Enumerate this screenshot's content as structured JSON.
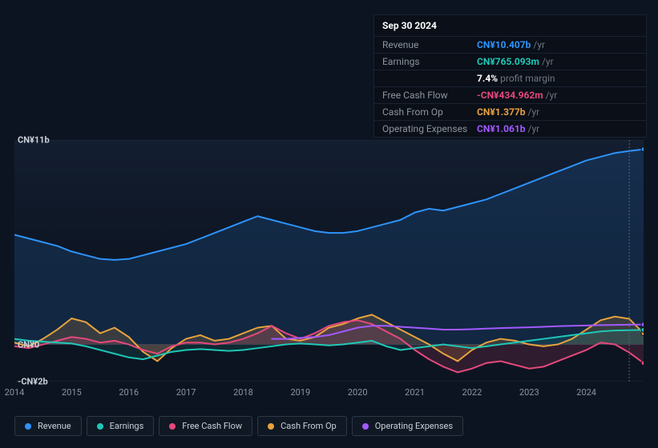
{
  "background_color": "#0d1421",
  "panel": {
    "title": "Sep 30 2024",
    "rows": [
      {
        "label": "Revenue",
        "value": "CN¥10.407b",
        "suffix": "/yr",
        "color": "#2e93fa"
      },
      {
        "label": "Earnings",
        "value": "CN¥765.093m",
        "suffix": "/yr",
        "color": "#1ec7b6"
      },
      {
        "label": "",
        "value": "7.4%",
        "suffix": "profit margin",
        "color": "#ffffff"
      },
      {
        "label": "Free Cash Flow",
        "value": "-CN¥434.962m",
        "suffix": "/yr",
        "color": "#e6487c"
      },
      {
        "label": "Cash From Op",
        "value": "CN¥1.377b",
        "suffix": "/yr",
        "color": "#e8a33d"
      },
      {
        "label": "Operating Expenses",
        "value": "CN¥1.061b",
        "suffix": "/yr",
        "color": "#a259ff"
      }
    ]
  },
  "chart": {
    "type": "area-multi",
    "x_domain": [
      2014,
      2025
    ],
    "y_domain": [
      -2,
      11
    ],
    "y_zero": 0,
    "y_ticks": [
      {
        "v": 11,
        "label": "CN¥11b"
      },
      {
        "v": 0,
        "label": "CN¥0"
      },
      {
        "v": -2,
        "label": "-CN¥2b"
      }
    ],
    "x_ticks": [
      2014,
      2015,
      2016,
      2017,
      2018,
      2019,
      2020,
      2021,
      2022,
      2023,
      2024
    ],
    "vline_x": 2024.75,
    "plot_bg_top": "rgba(30,50,80,0.35)",
    "plot_bg_bottom": "rgba(12,20,33,0.0)",
    "grid_color": "#20283a",
    "series": [
      {
        "id": "revenue",
        "label": "Revenue",
        "stroke": "#2e93fa",
        "fill": "rgba(46,147,250,0.15)",
        "data": [
          [
            2014.0,
            5.9
          ],
          [
            2014.25,
            5.7
          ],
          [
            2014.5,
            5.5
          ],
          [
            2014.75,
            5.3
          ],
          [
            2015.0,
            5.0
          ],
          [
            2015.25,
            4.8
          ],
          [
            2015.5,
            4.6
          ],
          [
            2015.75,
            4.55
          ],
          [
            2016.0,
            4.6
          ],
          [
            2016.25,
            4.8
          ],
          [
            2016.5,
            5.0
          ],
          [
            2016.75,
            5.2
          ],
          [
            2017.0,
            5.4
          ],
          [
            2017.25,
            5.7
          ],
          [
            2017.5,
            6.0
          ],
          [
            2017.75,
            6.3
          ],
          [
            2018.0,
            6.6
          ],
          [
            2018.25,
            6.9
          ],
          [
            2018.5,
            6.7
          ],
          [
            2018.75,
            6.5
          ],
          [
            2019.0,
            6.3
          ],
          [
            2019.25,
            6.1
          ],
          [
            2019.5,
            6.0
          ],
          [
            2019.75,
            6.0
          ],
          [
            2020.0,
            6.1
          ],
          [
            2020.25,
            6.3
          ],
          [
            2020.5,
            6.5
          ],
          [
            2020.75,
            6.7
          ],
          [
            2021.0,
            7.1
          ],
          [
            2021.25,
            7.3
          ],
          [
            2021.5,
            7.2
          ],
          [
            2021.75,
            7.4
          ],
          [
            2022.0,
            7.6
          ],
          [
            2022.25,
            7.8
          ],
          [
            2022.5,
            8.1
          ],
          [
            2022.75,
            8.4
          ],
          [
            2023.0,
            8.7
          ],
          [
            2023.25,
            9.0
          ],
          [
            2023.5,
            9.3
          ],
          [
            2023.75,
            9.6
          ],
          [
            2024.0,
            9.9
          ],
          [
            2024.25,
            10.1
          ],
          [
            2024.5,
            10.3
          ],
          [
            2024.75,
            10.407
          ],
          [
            2025.0,
            10.5
          ]
        ]
      },
      {
        "id": "cash_from_op",
        "label": "Cash From Op",
        "stroke": "#e8a33d",
        "fill": "rgba(232,163,61,0.18)",
        "data": [
          [
            2014.0,
            0.1
          ],
          [
            2014.25,
            -0.1
          ],
          [
            2014.5,
            0.3
          ],
          [
            2014.75,
            0.8
          ],
          [
            2015.0,
            1.4
          ],
          [
            2015.25,
            1.2
          ],
          [
            2015.5,
            0.6
          ],
          [
            2015.75,
            0.9
          ],
          [
            2016.0,
            0.4
          ],
          [
            2016.25,
            -0.4
          ],
          [
            2016.5,
            -0.9
          ],
          [
            2016.75,
            -0.2
          ],
          [
            2017.0,
            0.3
          ],
          [
            2017.25,
            0.5
          ],
          [
            2017.5,
            0.2
          ],
          [
            2017.75,
            0.3
          ],
          [
            2018.0,
            0.6
          ],
          [
            2018.25,
            0.9
          ],
          [
            2018.5,
            1.0
          ],
          [
            2018.75,
            0.3
          ],
          [
            2019.0,
            0.2
          ],
          [
            2019.25,
            0.4
          ],
          [
            2019.5,
            0.9
          ],
          [
            2019.75,
            1.1
          ],
          [
            2020.0,
            1.4
          ],
          [
            2020.25,
            1.6
          ],
          [
            2020.5,
            1.2
          ],
          [
            2020.75,
            0.8
          ],
          [
            2021.0,
            0.4
          ],
          [
            2021.25,
            0.0
          ],
          [
            2021.5,
            -0.5
          ],
          [
            2021.75,
            -0.9
          ],
          [
            2022.0,
            -0.3
          ],
          [
            2022.25,
            0.1
          ],
          [
            2022.5,
            0.3
          ],
          [
            2022.75,
            0.2
          ],
          [
            2023.0,
            0.0
          ],
          [
            2023.25,
            -0.1
          ],
          [
            2023.5,
            0.0
          ],
          [
            2023.75,
            0.3
          ],
          [
            2024.0,
            0.8
          ],
          [
            2024.25,
            1.3
          ],
          [
            2024.5,
            1.5
          ],
          [
            2024.75,
            1.377
          ],
          [
            2025.0,
            0.6
          ]
        ]
      },
      {
        "id": "free_cash_flow",
        "label": "Free Cash Flow",
        "stroke": "#e6487c",
        "fill": "rgba(230,72,124,0.16)",
        "data": [
          [
            2014.0,
            -0.1
          ],
          [
            2014.25,
            -0.2
          ],
          [
            2014.5,
            0.0
          ],
          [
            2014.75,
            0.2
          ],
          [
            2015.0,
            0.4
          ],
          [
            2015.25,
            0.3
          ],
          [
            2015.5,
            0.1
          ],
          [
            2015.75,
            0.2
          ],
          [
            2016.0,
            0.0
          ],
          [
            2016.25,
            -0.3
          ],
          [
            2016.5,
            -0.5
          ],
          [
            2016.75,
            -0.1
          ],
          [
            2017.0,
            0.1
          ],
          [
            2017.25,
            0.1
          ],
          [
            2017.5,
            0.0
          ],
          [
            2017.75,
            0.1
          ],
          [
            2018.0,
            0.3
          ],
          [
            2018.25,
            0.6
          ],
          [
            2018.5,
            1.0
          ],
          [
            2018.75,
            0.6
          ],
          [
            2019.0,
            0.3
          ],
          [
            2019.25,
            0.6
          ],
          [
            2019.5,
            1.0
          ],
          [
            2019.75,
            1.2
          ],
          [
            2020.0,
            1.3
          ],
          [
            2020.25,
            1.1
          ],
          [
            2020.5,
            0.7
          ],
          [
            2020.75,
            0.3
          ],
          [
            2021.0,
            -0.3
          ],
          [
            2021.25,
            -0.8
          ],
          [
            2021.5,
            -1.2
          ],
          [
            2021.75,
            -1.5
          ],
          [
            2022.0,
            -1.3
          ],
          [
            2022.25,
            -1.0
          ],
          [
            2022.5,
            -0.9
          ],
          [
            2022.75,
            -1.1
          ],
          [
            2023.0,
            -1.3
          ],
          [
            2023.25,
            -1.2
          ],
          [
            2023.5,
            -0.9
          ],
          [
            2023.75,
            -0.6
          ],
          [
            2024.0,
            -0.3
          ],
          [
            2024.25,
            0.1
          ],
          [
            2024.5,
            0.0
          ],
          [
            2024.75,
            -0.435
          ],
          [
            2025.0,
            -1.0
          ]
        ]
      },
      {
        "id": "operating_expenses",
        "label": "Operating Expenses",
        "stroke": "#a259ff",
        "fill": "none",
        "data": [
          [
            2018.5,
            0.3
          ],
          [
            2018.75,
            0.3
          ],
          [
            2019.0,
            0.35
          ],
          [
            2019.25,
            0.4
          ],
          [
            2019.5,
            0.5
          ],
          [
            2019.75,
            0.7
          ],
          [
            2020.0,
            0.9
          ],
          [
            2020.25,
            1.0
          ],
          [
            2020.5,
            1.0
          ],
          [
            2020.75,
            0.95
          ],
          [
            2021.0,
            0.9
          ],
          [
            2021.25,
            0.85
          ],
          [
            2021.5,
            0.8
          ],
          [
            2021.75,
            0.8
          ],
          [
            2022.0,
            0.82
          ],
          [
            2022.25,
            0.85
          ],
          [
            2022.5,
            0.88
          ],
          [
            2022.75,
            0.9
          ],
          [
            2023.0,
            0.92
          ],
          [
            2023.25,
            0.95
          ],
          [
            2023.5,
            0.98
          ],
          [
            2023.75,
            1.0
          ],
          [
            2024.0,
            1.02
          ],
          [
            2024.25,
            1.04
          ],
          [
            2024.5,
            1.05
          ],
          [
            2024.75,
            1.061
          ],
          [
            2025.0,
            1.07
          ]
        ]
      },
      {
        "id": "earnings",
        "label": "Earnings",
        "stroke": "#1ec7b6",
        "fill": "rgba(30,199,182,0.12)",
        "data": [
          [
            2014.0,
            0.3
          ],
          [
            2014.25,
            0.2
          ],
          [
            2014.5,
            0.15
          ],
          [
            2014.75,
            0.1
          ],
          [
            2015.0,
            0.05
          ],
          [
            2015.25,
            -0.1
          ],
          [
            2015.5,
            -0.3
          ],
          [
            2015.75,
            -0.5
          ],
          [
            2016.0,
            -0.7
          ],
          [
            2016.25,
            -0.8
          ],
          [
            2016.5,
            -0.6
          ],
          [
            2016.75,
            -0.4
          ],
          [
            2017.0,
            -0.3
          ],
          [
            2017.25,
            -0.25
          ],
          [
            2017.5,
            -0.3
          ],
          [
            2017.75,
            -0.35
          ],
          [
            2018.0,
            -0.3
          ],
          [
            2018.25,
            -0.2
          ],
          [
            2018.5,
            -0.1
          ],
          [
            2018.75,
            0.0
          ],
          [
            2019.0,
            0.05
          ],
          [
            2019.25,
            0.0
          ],
          [
            2019.5,
            -0.05
          ],
          [
            2019.75,
            0.0
          ],
          [
            2020.0,
            0.1
          ],
          [
            2020.25,
            0.2
          ],
          [
            2020.5,
            -0.1
          ],
          [
            2020.75,
            -0.3
          ],
          [
            2021.0,
            -0.2
          ],
          [
            2021.25,
            -0.1
          ],
          [
            2021.5,
            0.0
          ],
          [
            2021.75,
            -0.1
          ],
          [
            2022.0,
            -0.2
          ],
          [
            2022.25,
            -0.1
          ],
          [
            2022.5,
            0.0
          ],
          [
            2022.75,
            0.1
          ],
          [
            2023.0,
            0.2
          ],
          [
            2023.25,
            0.3
          ],
          [
            2023.5,
            0.4
          ],
          [
            2023.75,
            0.5
          ],
          [
            2024.0,
            0.6
          ],
          [
            2024.25,
            0.7
          ],
          [
            2024.5,
            0.75
          ],
          [
            2024.75,
            0.765
          ],
          [
            2025.0,
            0.78
          ]
        ]
      }
    ],
    "legend": [
      {
        "id": "revenue",
        "label": "Revenue",
        "color": "#2e93fa"
      },
      {
        "id": "earnings",
        "label": "Earnings",
        "color": "#1ec7b6"
      },
      {
        "id": "free_cash_flow",
        "label": "Free Cash Flow",
        "color": "#e6487c"
      },
      {
        "id": "cash_from_op",
        "label": "Cash From Op",
        "color": "#e8a33d"
      },
      {
        "id": "operating_expenses",
        "label": "Operating Expenses",
        "color": "#a259ff"
      }
    ],
    "line_width": 2,
    "marker_radius": 3
  }
}
